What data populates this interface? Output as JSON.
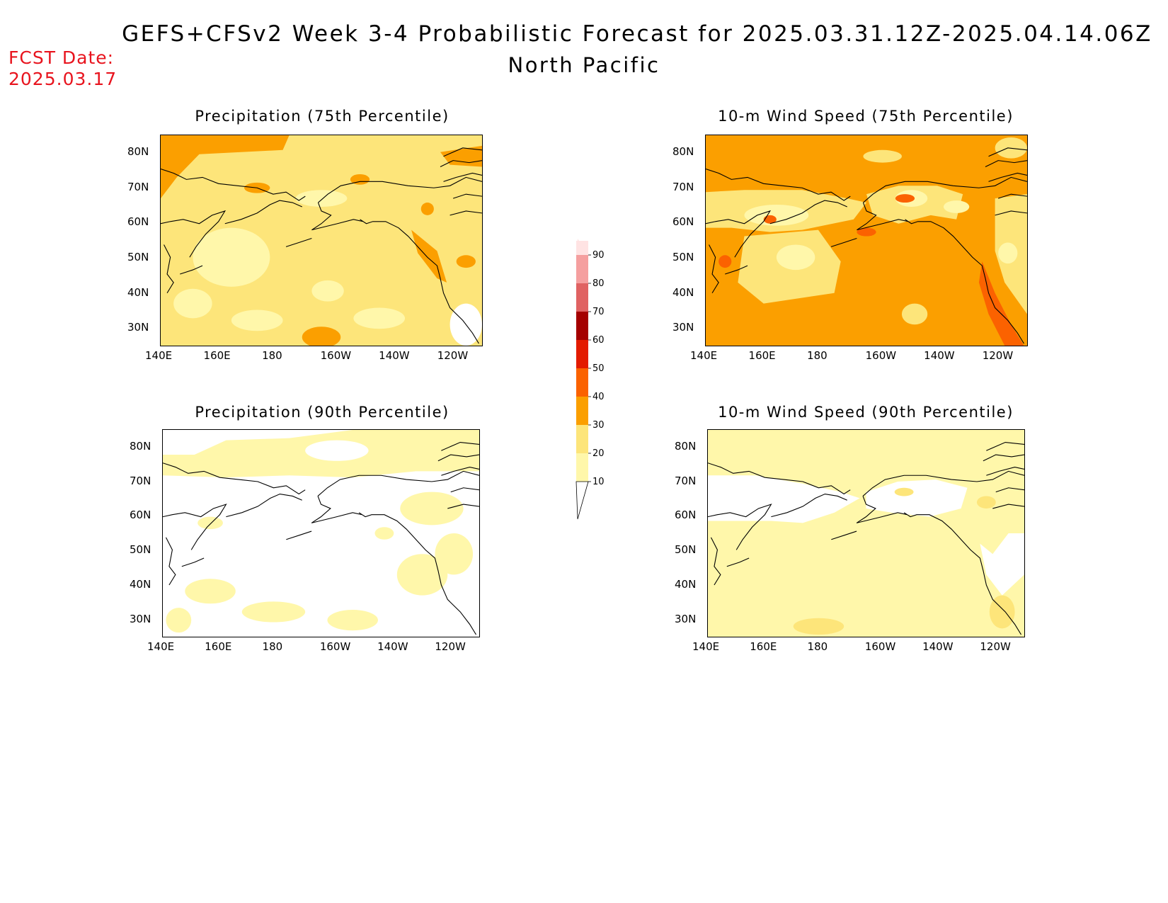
{
  "header": {
    "title": "GEFS+CFSv2 Week 3-4 Probabilistic Forecast for 2025.03.31.12Z-2025.04.14.06Z",
    "subtitle": "North Pacific",
    "fcst_label": "FCST Date:",
    "fcst_date": "2025.03.17"
  },
  "colors": {
    "c10": "#fff7aa",
    "c20": "#fde57a",
    "c30": "#fb9f00",
    "c40": "#fb6200",
    "c50": "#e31b00",
    "c60": "#a50000",
    "c70": "#e06262",
    "c80": "#f59f9f",
    "c90": "#ffe3e3"
  },
  "axes": {
    "lon_ticks": [
      "140E",
      "160E",
      "180",
      "160W",
      "140W",
      "120W"
    ],
    "lat_ticks": [
      "30N",
      "40N",
      "50N",
      "60N",
      "70N",
      "80N"
    ]
  },
  "panels": [
    {
      "id": "p1",
      "title": "Precipitation (75th Percentile)",
      "base": "c20",
      "patches": [
        "c30",
        "c10"
      ]
    },
    {
      "id": "p2",
      "title": "10-m Wind Speed (75th Percentile)",
      "base": "c30",
      "patches": [
        "c20",
        "c10",
        "c40"
      ]
    },
    {
      "id": "p3",
      "title": "Precipitation (90th Percentile)",
      "base": "white",
      "patches": [
        "c10"
      ]
    },
    {
      "id": "p4",
      "title": "10-m Wind Speed (90th Percentile)",
      "base": "c10",
      "patches": [
        "white",
        "c20"
      ]
    }
  ],
  "colorbar": {
    "labels": [
      "10",
      "20",
      "30",
      "40",
      "50",
      "60",
      "70",
      "80",
      "90"
    ]
  }
}
